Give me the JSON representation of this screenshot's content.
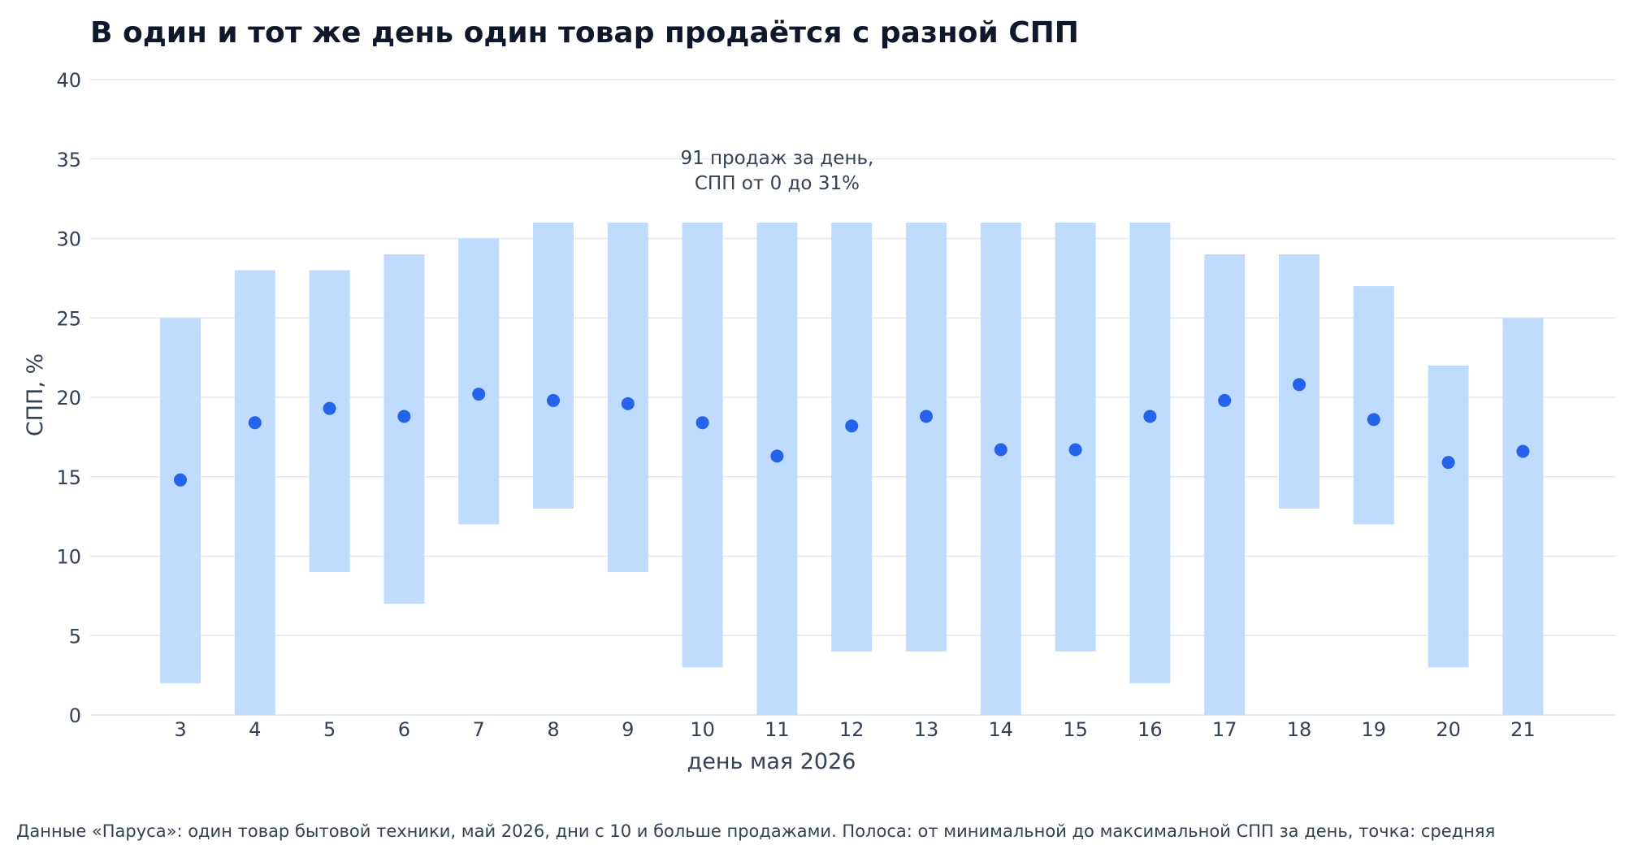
{
  "title": "В один и тот же день один товар продаётся с разной СПП",
  "footnote": "Данные «Паруса»: один товар бытовой техники, май 2026, дни с 10 и больше продажами. Полоса: от минимальной до максимальной СПП за день, точка: средняя",
  "annotation": {
    "line1": "91 продаж за день,",
    "line2": "СПП от 0 до 31%"
  },
  "colors": {
    "range_bar": "#bfdbfe",
    "mean_dot": "#2563eb",
    "grid": "#e2e8f0",
    "title": "#0f172a",
    "text": "#334155"
  },
  "chart_data": {
    "type": "bar",
    "subtype": "range-with-mean",
    "xlabel": "день мая 2026",
    "ylabel": "СПП, %",
    "ylim": [
      0,
      40
    ],
    "yticks": [
      0,
      5,
      10,
      15,
      20,
      25,
      30,
      35,
      40
    ],
    "grid": true,
    "legend": "none",
    "categories": [
      "3",
      "4",
      "5",
      "6",
      "7",
      "8",
      "9",
      "10",
      "11",
      "12",
      "13",
      "14",
      "15",
      "16",
      "17",
      "18",
      "19",
      "20",
      "21"
    ],
    "series": [
      {
        "values_min": [
          2,
          0,
          9,
          7,
          12,
          13,
          9,
          3,
          0,
          4,
          4,
          0,
          4,
          2,
          0,
          13,
          12,
          3,
          0
        ]
      },
      {
        "values_max": [
          25,
          28,
          28,
          29,
          30,
          31,
          31,
          31,
          31,
          31,
          31,
          31,
          31,
          31,
          29,
          29,
          27,
          22,
          25
        ]
      },
      {
        "values_mean": [
          14.8,
          18.4,
          19.3,
          18.8,
          20.2,
          19.8,
          19.6,
          18.4,
          16.3,
          18.2,
          18.8,
          16.7,
          16.7,
          18.8,
          19.8,
          20.8,
          18.6,
          15.9,
          16.6
        ]
      }
    ]
  }
}
